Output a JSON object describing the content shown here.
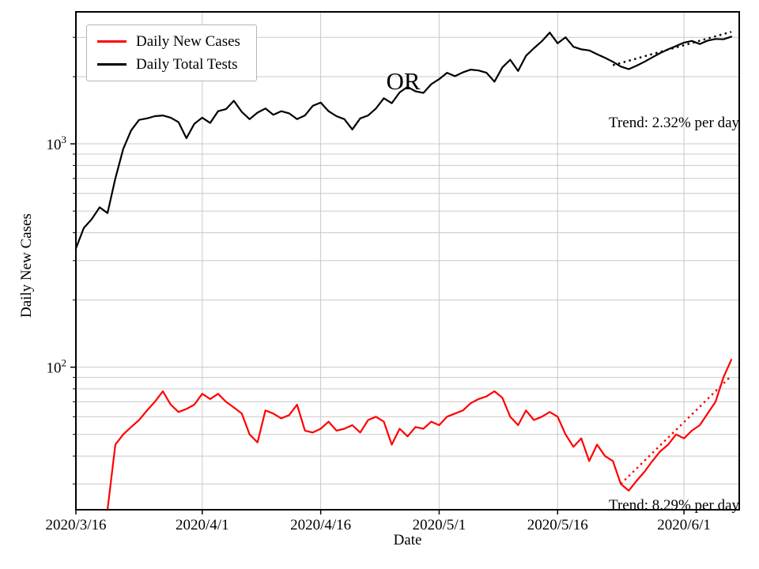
{
  "figure": {
    "title": "OR",
    "xlabel": "Date",
    "ylabel": "Daily New Cases"
  },
  "legend": {
    "items": [
      {
        "label": "Daily New Cases",
        "color": "#ff0000"
      },
      {
        "label": "Daily Total Tests",
        "color": "#000000"
      }
    ]
  },
  "annotations": {
    "tests_trend": "Trend: 2.32% per day",
    "cases_trend": "Trend: 8.29% per day"
  },
  "chart_data": {
    "type": "line",
    "title": "OR",
    "xlabel": "Date",
    "ylabel": "Daily New Cases",
    "y_scale": "log",
    "grid": true,
    "legend_position": "upper left",
    "ylim": [
      23,
      3900
    ],
    "x_range": [
      0,
      84
    ],
    "xticks": [
      {
        "index": 0,
        "label": "2020/3/16"
      },
      {
        "index": 16,
        "label": "2020/4/1"
      },
      {
        "index": 31,
        "label": "2020/4/16"
      },
      {
        "index": 46,
        "label": "2020/5/1"
      },
      {
        "index": 61,
        "label": "2020/5/16"
      },
      {
        "index": 77,
        "label": "2020/6/1"
      }
    ],
    "yticks": [
      {
        "value": 100,
        "base": "10",
        "exponent": "2"
      },
      {
        "value": 1000,
        "base": "10",
        "exponent": "3"
      }
    ],
    "dates": [
      "2020/3/16",
      "2020/3/17",
      "2020/3/18",
      "2020/3/19",
      "2020/3/20",
      "2020/3/21",
      "2020/3/22",
      "2020/3/23",
      "2020/3/24",
      "2020/3/25",
      "2020/3/26",
      "2020/3/27",
      "2020/3/28",
      "2020/3/29",
      "2020/3/30",
      "2020/3/31",
      "2020/4/1",
      "2020/4/2",
      "2020/4/3",
      "2020/4/4",
      "2020/4/5",
      "2020/4/6",
      "2020/4/7",
      "2020/4/8",
      "2020/4/9",
      "2020/4/10",
      "2020/4/11",
      "2020/4/12",
      "2020/4/13",
      "2020/4/14",
      "2020/4/15",
      "2020/4/16",
      "2020/4/17",
      "2020/4/18",
      "2020/4/19",
      "2020/4/20",
      "2020/4/21",
      "2020/4/22",
      "2020/4/23",
      "2020/4/24",
      "2020/4/25",
      "2020/4/26",
      "2020/4/27",
      "2020/4/28",
      "2020/4/29",
      "2020/4/30",
      "2020/5/1",
      "2020/5/2",
      "2020/5/3",
      "2020/5/4",
      "2020/5/5",
      "2020/5/6",
      "2020/5/7",
      "2020/5/8",
      "2020/5/9",
      "2020/5/10",
      "2020/5/11",
      "2020/5/12",
      "2020/5/13",
      "2020/5/14",
      "2020/5/15",
      "2020/5/16",
      "2020/5/17",
      "2020/5/18",
      "2020/5/19",
      "2020/5/20",
      "2020/5/21",
      "2020/5/22",
      "2020/5/23",
      "2020/5/24",
      "2020/5/25",
      "2020/5/26",
      "2020/5/27",
      "2020/5/28",
      "2020/5/29",
      "2020/5/30",
      "2020/5/31",
      "2020/6/1",
      "2020/6/2",
      "2020/6/3",
      "2020/6/4",
      "2020/6/5",
      "2020/6/6",
      "2020/6/7"
    ],
    "series": [
      {
        "name": "Daily New Cases",
        "color": "#ff0000",
        "values": [
          null,
          null,
          null,
          null,
          23,
          45,
          50,
          54,
          58,
          64,
          70,
          78,
          68,
          63,
          65,
          68,
          76,
          72,
          76,
          70,
          66,
          62,
          50,
          46,
          64,
          62,
          59,
          61,
          68,
          52,
          51,
          53,
          57,
          52,
          53,
          55,
          51,
          58,
          60,
          57,
          45,
          53,
          49,
          54,
          53,
          57,
          55,
          60,
          62,
          64,
          69,
          72,
          74,
          78,
          73,
          60,
          55,
          64,
          58,
          60,
          63,
          60,
          50,
          44,
          48,
          38,
          45,
          40,
          38,
          30,
          28,
          31,
          34,
          38,
          42,
          45,
          50,
          48,
          52,
          55,
          62,
          70,
          90,
          108
        ]
      },
      {
        "name": "Daily Total Tests",
        "color": "#000000",
        "values": [
          340,
          420,
          460,
          520,
          490,
          700,
          950,
          1150,
          1280,
          1300,
          1330,
          1340,
          1310,
          1250,
          1060,
          1230,
          1310,
          1240,
          1400,
          1430,
          1560,
          1390,
          1290,
          1380,
          1440,
          1350,
          1400,
          1370,
          1290,
          1340,
          1480,
          1530,
          1400,
          1330,
          1290,
          1160,
          1300,
          1340,
          1440,
          1600,
          1520,
          1700,
          1800,
          1720,
          1690,
          1850,
          1950,
          2080,
          2010,
          2090,
          2150,
          2130,
          2080,
          1900,
          2200,
          2380,
          2120,
          2480,
          2680,
          2880,
          3150,
          2820,
          3000,
          2720,
          2650,
          2620,
          2520,
          2430,
          2330,
          2220,
          2160,
          2240,
          2330,
          2440,
          2550,
          2650,
          2740,
          2840,
          2890,
          2800,
          2900,
          2950,
          2940,
          3020
        ]
      }
    ],
    "trend_lines": [
      {
        "series": "Daily Total Tests",
        "label": "Trend: 2.32% per day",
        "pct_per_day": 2.32,
        "start_index": 68,
        "start_value": 2250,
        "end_index": 83,
        "color": "#000000"
      },
      {
        "series": "Daily New Cases",
        "label": "Trend: 8.29% per day",
        "pct_per_day": 8.29,
        "start_index": 69,
        "start_value": 30,
        "end_index": 83,
        "color": "#ff0000"
      }
    ]
  }
}
